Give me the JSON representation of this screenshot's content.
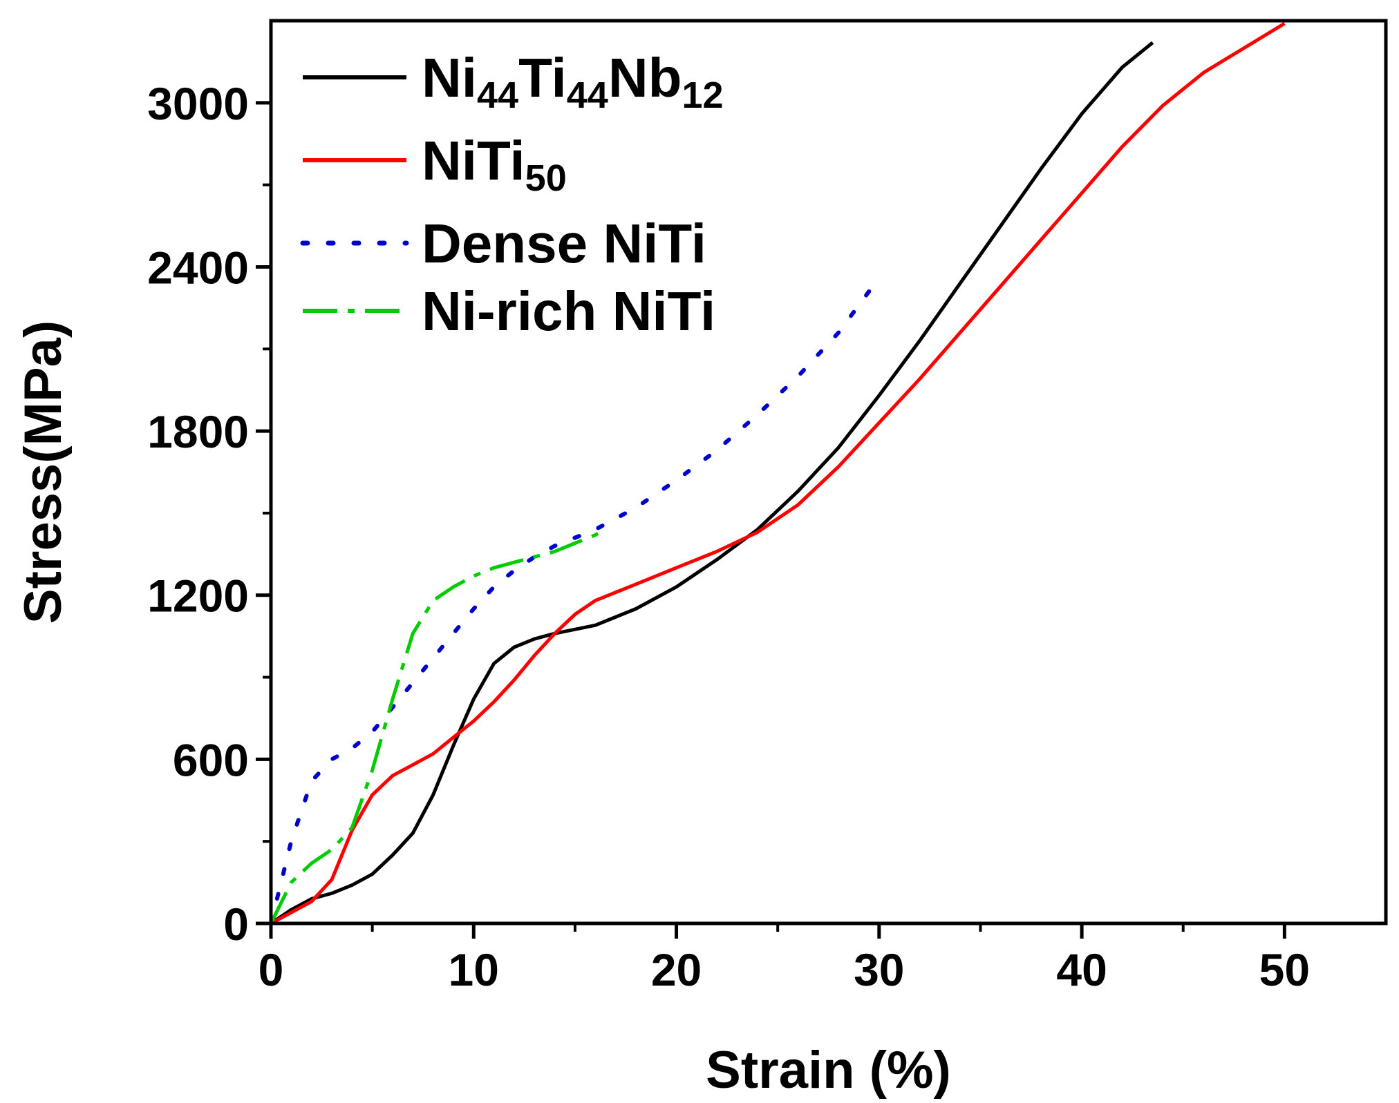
{
  "chart_data": {
    "type": "line",
    "title": "",
    "xlabel": "Strain (%)",
    "ylabel": "Stress(MPa)",
    "xlim": [
      0,
      55
    ],
    "ylim": [
      0,
      3300
    ],
    "xticks": [
      0,
      10,
      20,
      30,
      40,
      50
    ],
    "yticks": [
      0,
      600,
      1200,
      1800,
      2400,
      3000
    ],
    "grid": false,
    "legend_position": "top-left",
    "series": [
      {
        "name": "Ni44Ti44Nb12",
        "label_parts": [
          {
            "text": "Ni",
            "sub": false
          },
          {
            "text": "44",
            "sub": true
          },
          {
            "text": "Ti",
            "sub": false
          },
          {
            "text": "44",
            "sub": true
          },
          {
            "text": "Nb",
            "sub": false
          },
          {
            "text": "12",
            "sub": true
          }
        ],
        "color": "#000000",
        "style": "solid",
        "points": [
          [
            0,
            0
          ],
          [
            1,
            50
          ],
          [
            2,
            90
          ],
          [
            3,
            110
          ],
          [
            4,
            140
          ],
          [
            5,
            180
          ],
          [
            6,
            250
          ],
          [
            7,
            330
          ],
          [
            8,
            470
          ],
          [
            9,
            650
          ],
          [
            10,
            820
          ],
          [
            11,
            950
          ],
          [
            12,
            1010
          ],
          [
            13,
            1040
          ],
          [
            14,
            1060
          ],
          [
            16,
            1090
          ],
          [
            18,
            1150
          ],
          [
            20,
            1230
          ],
          [
            22,
            1330
          ],
          [
            24,
            1440
          ],
          [
            26,
            1580
          ],
          [
            28,
            1740
          ],
          [
            30,
            1930
          ],
          [
            32,
            2130
          ],
          [
            34,
            2340
          ],
          [
            36,
            2550
          ],
          [
            38,
            2760
          ],
          [
            40,
            2960
          ],
          [
            42,
            3130
          ],
          [
            43.5,
            3220
          ]
        ]
      },
      {
        "name": "NiTi50",
        "label_parts": [
          {
            "text": "NiTi",
            "sub": false
          },
          {
            "text": "50",
            "sub": true
          }
        ],
        "color": "#ff0000",
        "style": "solid",
        "points": [
          [
            0,
            0
          ],
          [
            1,
            40
          ],
          [
            2,
            80
          ],
          [
            3,
            160
          ],
          [
            4,
            340
          ],
          [
            5,
            470
          ],
          [
            6,
            540
          ],
          [
            7,
            580
          ],
          [
            8,
            620
          ],
          [
            9,
            680
          ],
          [
            10,
            740
          ],
          [
            11,
            810
          ],
          [
            12,
            890
          ],
          [
            13,
            980
          ],
          [
            14,
            1060
          ],
          [
            15,
            1130
          ],
          [
            16,
            1180
          ],
          [
            18,
            1240
          ],
          [
            20,
            1300
          ],
          [
            22,
            1360
          ],
          [
            24,
            1430
          ],
          [
            26,
            1530
          ],
          [
            28,
            1670
          ],
          [
            30,
            1830
          ],
          [
            32,
            1990
          ],
          [
            34,
            2160
          ],
          [
            36,
            2330
          ],
          [
            38,
            2500
          ],
          [
            40,
            2670
          ],
          [
            42,
            2840
          ],
          [
            44,
            2990
          ],
          [
            46,
            3110
          ],
          [
            48,
            3200
          ],
          [
            50,
            3290
          ]
        ]
      },
      {
        "name": "Dense NiTi",
        "label_parts": [
          {
            "text": "Dense NiTi",
            "sub": false
          }
        ],
        "color": "#0000cc",
        "style": "dotted",
        "points": [
          [
            0,
            0
          ],
          [
            0.5,
            150
          ],
          [
            1,
            300
          ],
          [
            2,
            520
          ],
          [
            3,
            600
          ],
          [
            4,
            640
          ],
          [
            5,
            700
          ],
          [
            6,
            790
          ],
          [
            7,
            880
          ],
          [
            8,
            970
          ],
          [
            9,
            1060
          ],
          [
            10,
            1150
          ],
          [
            11,
            1230
          ],
          [
            12,
            1290
          ],
          [
            13,
            1340
          ],
          [
            14,
            1380
          ],
          [
            16,
            1440
          ],
          [
            18,
            1520
          ],
          [
            20,
            1620
          ],
          [
            22,
            1730
          ],
          [
            24,
            1860
          ],
          [
            26,
            2000
          ],
          [
            28,
            2160
          ],
          [
            30,
            2360
          ]
        ]
      },
      {
        "name": "Ni-rich NiTi",
        "label_parts": [
          {
            "text": "Ni-rich NiTi",
            "sub": false
          }
        ],
        "color": "#00cc00",
        "style": "dashdot",
        "points": [
          [
            0,
            0
          ],
          [
            1,
            150
          ],
          [
            2,
            220
          ],
          [
            3,
            270
          ],
          [
            4,
            350
          ],
          [
            5,
            560
          ],
          [
            6,
            820
          ],
          [
            7,
            1060
          ],
          [
            8,
            1180
          ],
          [
            9,
            1230
          ],
          [
            10,
            1270
          ],
          [
            11,
            1300
          ],
          [
            12,
            1320
          ],
          [
            13,
            1340
          ],
          [
            14,
            1360
          ],
          [
            15,
            1390
          ],
          [
            16,
            1420
          ],
          [
            16.5,
            1440
          ]
        ]
      }
    ]
  }
}
